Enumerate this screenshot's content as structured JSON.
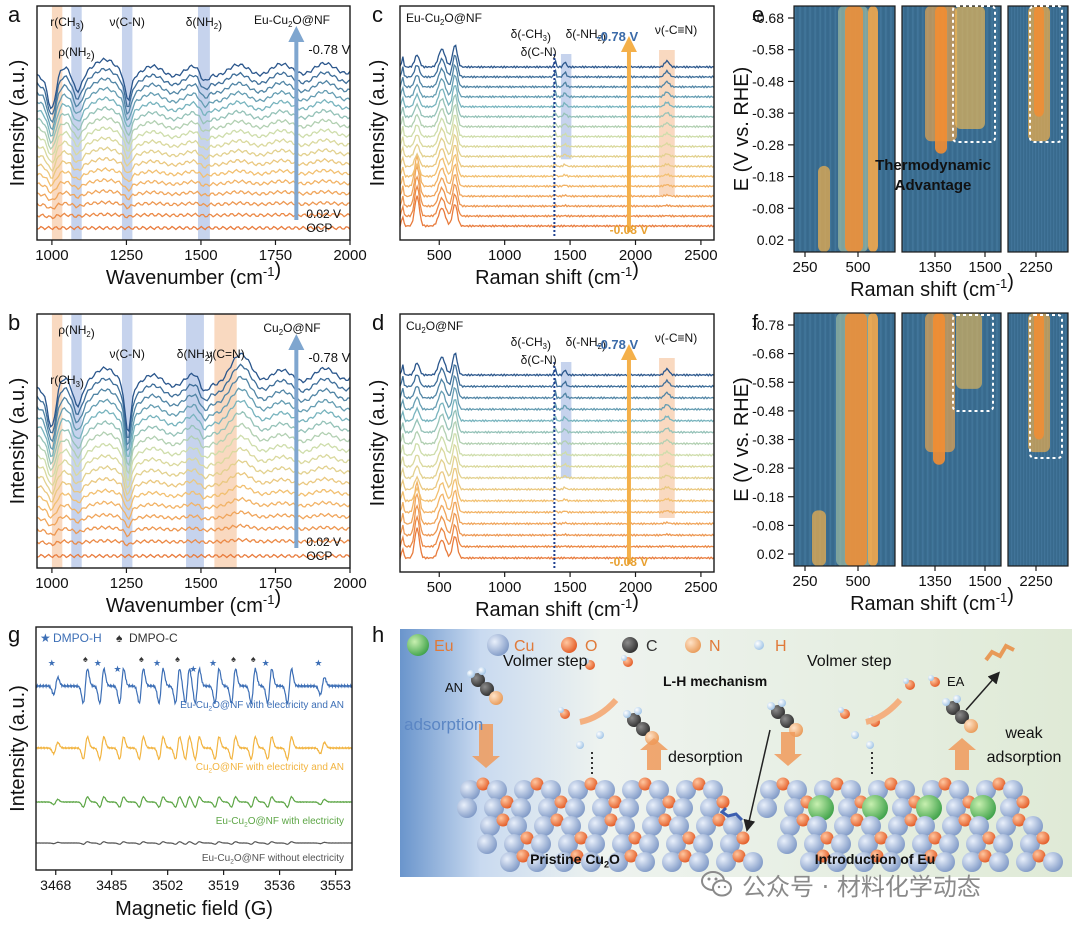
{
  "colors": {
    "frame": "#1a1a1a",
    "arrow": "#7fa6cf",
    "arrow_orange": "#f4b04a",
    "band_blue": "#b8c8e8",
    "band_orange": "#f8d0b0",
    "text_blue": "#3a6aa8",
    "text_orange": "#e8a030",
    "dotted": "#1f3f8f",
    "heat_bg": "#3c6f93",
    "heat_hot": "#f28d32"
  },
  "chart_data": [
    {
      "panel": "a",
      "type": "line",
      "title": "Eu-Cu2O@NF",
      "xlabel": "Wavenumber (cm-1)",
      "ylabel": "Intensity (a.u.)",
      "xlim": [
        950,
        2000
      ],
      "xticks": [
        "1000",
        "1250",
        "1500",
        "1750",
        "2000"
      ],
      "series_count": 17,
      "bands": [
        {
          "label": "r(CH3)",
          "x_start": 1000,
          "x_end": 1035,
          "color": "orange"
        },
        {
          "label": "ρ(NH2)",
          "x_start": 1065,
          "x_end": 1100,
          "color": "blue"
        },
        {
          "label": "ν(C-N)",
          "x_start": 1235,
          "x_end": 1270,
          "color": "blue"
        },
        {
          "label": "δ(NH2)",
          "x_start": 1490,
          "x_end": 1530,
          "color": "blue"
        }
      ],
      "arrow_top_label": "-0.78 V",
      "arrow_bottom_label": "0.02 V",
      "baseline_label": "OCP"
    },
    {
      "panel": "b",
      "type": "line",
      "title": "Cu2O@NF",
      "xlabel": "Wavenumber (cm-1)",
      "ylabel": "Intensity (a.u.)",
      "xlim": [
        950,
        2000
      ],
      "xticks": [
        "1000",
        "1250",
        "1500",
        "1750",
        "2000"
      ],
      "series_count": 17,
      "bands": [
        {
          "label": "r(CH3)",
          "x_start": 1000,
          "x_end": 1035,
          "color": "orange"
        },
        {
          "label": "ρ(NH2)",
          "x_start": 1065,
          "x_end": 1100,
          "color": "blue"
        },
        {
          "label": "ν(C-N)",
          "x_start": 1235,
          "x_end": 1270,
          "color": "blue"
        },
        {
          "label": "δ(NH2)",
          "x_start": 1450,
          "x_end": 1510,
          "color": "blue"
        },
        {
          "label": "ν(C=N)",
          "x_start": 1545,
          "x_end": 1620,
          "color": "orange"
        }
      ],
      "arrow_top_label": "-0.78 V",
      "arrow_bottom_label": "0.02 V",
      "baseline_label": "OCP"
    },
    {
      "panel": "c",
      "type": "line",
      "title": "Eu-Cu2O@NF",
      "xlabel": "Raman shift (cm-1)",
      "ylabel": "Intensity (a.u.)",
      "xlim": [
        200,
        2600
      ],
      "xticks": [
        "500",
        "1000",
        "1500",
        "2000",
        "2500"
      ],
      "series_count": 17,
      "bands": [
        {
          "label": "δ(-CH3)",
          "x_start": 1370,
          "x_end": 1395,
          "color": "dotted"
        },
        {
          "label": "δ(-NH2)",
          "x_start": 1430,
          "x_end": 1510,
          "color": "blue"
        },
        {
          "label": "ν(-C≡N)",
          "x_start": 2180,
          "x_end": 2300,
          "color": "orange"
        }
      ],
      "extra_label": "δ(C-N)",
      "arrow_top_label": "-0.78 V",
      "arrow_bottom_label": "-0.08 V"
    },
    {
      "panel": "d",
      "type": "line",
      "title": "Cu2O@NF",
      "xlabel": "Raman shift (cm-1)",
      "ylabel": "Intensity (a.u.)",
      "xlim": [
        200,
        2600
      ],
      "xticks": [
        "500",
        "1000",
        "1500",
        "2000",
        "2500"
      ],
      "series_count": 17,
      "bands": [
        {
          "label": "δ(-CH3)",
          "x_start": 1370,
          "x_end": 1395,
          "color": "dotted"
        },
        {
          "label": "δ(-NH2)",
          "x_start": 1430,
          "x_end": 1510,
          "color": "blue"
        },
        {
          "label": "ν(-C≡N)",
          "x_start": 2180,
          "x_end": 2300,
          "color": "orange"
        }
      ],
      "extra_label": "δ(C-N)",
      "arrow_top_label": "-0.78 V",
      "arrow_bottom_label": "-0.08 V"
    },
    {
      "panel": "e",
      "type": "heatmap",
      "xlabel": "Raman shift (cm-1)",
      "ylabel": "E (V vs. RHE)",
      "yticks": [
        "-0.68",
        "-0.58",
        "-0.48",
        "-0.38",
        "-0.28",
        "-0.18",
        "-0.08",
        "0.02"
      ],
      "xticks": [
        "250",
        "500",
        "1350",
        "1500",
        "2250"
      ],
      "annotation": "Thermodynamic Advantage"
    },
    {
      "panel": "f",
      "type": "heatmap",
      "xlabel": "Raman shift (cm-1)",
      "ylabel": "E (V vs. RHE)",
      "yticks": [
        "-0.78",
        "-0.68",
        "-0.58",
        "-0.48",
        "-0.38",
        "-0.28",
        "-0.18",
        "-0.08",
        "0.02"
      ],
      "xticks": [
        "250",
        "500",
        "1350",
        "1500",
        "2250"
      ]
    },
    {
      "panel": "g",
      "type": "line",
      "xlabel": "Magnetic field (G)",
      "ylabel": "Intensity (a.u.)",
      "xlim": [
        3462,
        3558
      ],
      "xticks": [
        "3468",
        "3485",
        "3502",
        "3519",
        "3536",
        "3553"
      ],
      "legend": [
        {
          "symbol": "★",
          "label": "DMPO-H"
        },
        {
          "symbol": "♠",
          "label": "DMPO-C"
        }
      ],
      "series": [
        {
          "name": "Eu-Cu2O@NF with electricity and AN",
          "color": "#3d6fb6"
        },
        {
          "name": "Cu2O@NF with electricity and AN",
          "color": "#f2b440"
        },
        {
          "name": "Eu-Cu2O@NF with electricity",
          "color": "#5da646"
        },
        {
          "name": "Eu-Cu2O@NF without electricity",
          "color": "#555555"
        }
      ]
    }
  ],
  "panel_letters": {
    "a": "a",
    "b": "b",
    "c": "c",
    "d": "d",
    "e": "e",
    "f": "f",
    "g": "g",
    "h": "h"
  },
  "panel_h": {
    "legend": [
      "Eu",
      "Cu",
      "O",
      "C",
      "N",
      "H"
    ],
    "labels": {
      "volmer_left": "Volmer step",
      "volmer_right": "Volmer step",
      "an": "AN",
      "adsorption": "adsorption",
      "lh": "L-H mechanism",
      "desorption": "desorption",
      "ea": "EA",
      "weak_adsorption": "weak adsorption",
      "pristine": "Pristine Cu2O",
      "intro_eu": "Introduction of Eu"
    }
  },
  "watermark": {
    "text": "公众号 · 材料化学动态"
  }
}
